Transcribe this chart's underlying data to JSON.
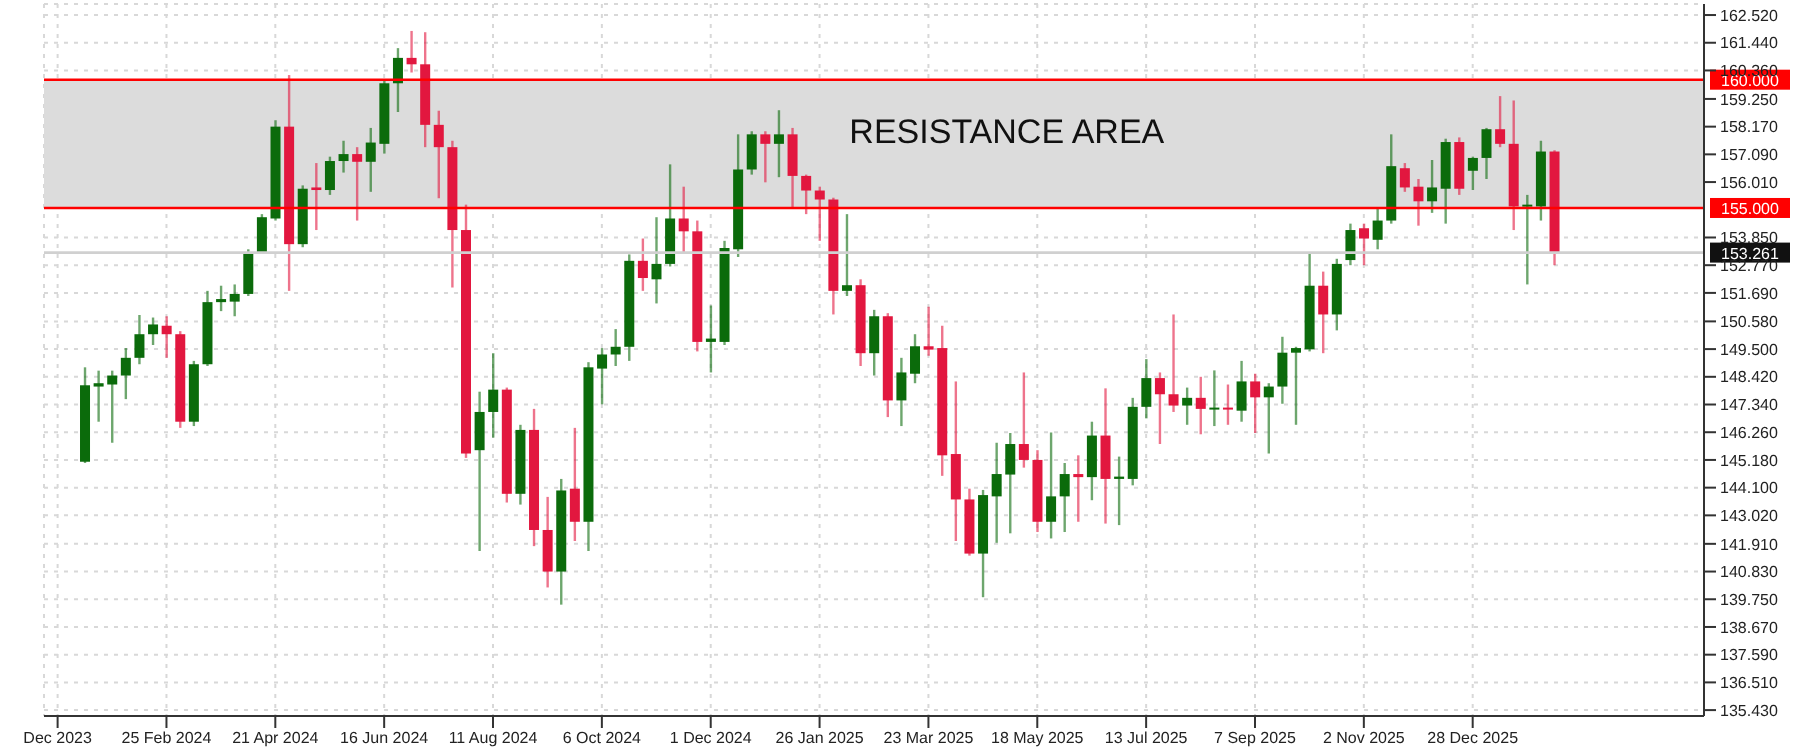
{
  "chart_data": {
    "type": "candlestick",
    "x": [
      "2024-01-14",
      "2024-01-21",
      "2024-01-28",
      "2024-02-04",
      "2024-02-11",
      "2024-02-18",
      "2024-02-25",
      "2024-03-03",
      "2024-03-10",
      "2024-03-17",
      "2024-03-24",
      "2024-03-31",
      "2024-04-07",
      "2024-04-14",
      "2024-04-21",
      "2024-04-28",
      "2024-05-05",
      "2024-05-12",
      "2024-05-19",
      "2024-05-26",
      "2024-06-02",
      "2024-06-09",
      "2024-06-16",
      "2024-06-23",
      "2024-06-30",
      "2024-07-07",
      "2024-07-14",
      "2024-07-21",
      "2024-07-28",
      "2024-08-04",
      "2024-08-11",
      "2024-08-18",
      "2024-08-25",
      "2024-09-01",
      "2024-09-08",
      "2024-09-15",
      "2024-09-22",
      "2024-09-29",
      "2024-10-06",
      "2024-10-13",
      "2024-10-20",
      "2024-10-27",
      "2024-11-03",
      "2024-11-10",
      "2024-11-17",
      "2024-11-24",
      "2024-12-01",
      "2024-12-08",
      "2024-12-15",
      "2024-12-22",
      "2024-12-29",
      "2025-01-05",
      "2025-01-12",
      "2025-01-19",
      "2025-01-26",
      "2025-02-02",
      "2025-02-09",
      "2025-02-16",
      "2025-02-23",
      "2025-03-02",
      "2025-03-09",
      "2025-03-16",
      "2025-03-23",
      "2025-03-30",
      "2025-04-06",
      "2025-04-13",
      "2025-04-20",
      "2025-04-27",
      "2025-05-04",
      "2025-05-11",
      "2025-05-18",
      "2025-05-25",
      "2025-06-01",
      "2025-06-08",
      "2025-06-15",
      "2025-06-22",
      "2025-06-29",
      "2025-07-06",
      "2025-07-13",
      "2025-07-20",
      "2025-07-27",
      "2025-08-03",
      "2025-08-10",
      "2025-08-17",
      "2025-08-24",
      "2025-08-31",
      "2025-09-07",
      "2025-09-14",
      "2025-09-21",
      "2025-09-28",
      "2025-10-05",
      "2025-10-12",
      "2025-10-19",
      "2025-10-26",
      "2025-11-02",
      "2025-11-09",
      "2025-11-16",
      "2025-11-23",
      "2025-11-30",
      "2025-12-07",
      "2025-12-14",
      "2025-12-21",
      "2025-12-28",
      "2026-01-04",
      "2026-01-11",
      "2026-01-18",
      "2026-01-25",
      "2026-02-01",
      "2026-02-08"
    ],
    "ohlc": [
      [
        145.11,
        148.79,
        145.06,
        148.09
      ],
      [
        148.04,
        148.66,
        146.67,
        148.17
      ],
      [
        148.12,
        148.66,
        145.85,
        148.47
      ],
      [
        148.47,
        149.54,
        147.55,
        149.16
      ],
      [
        149.16,
        150.83,
        148.91,
        150.08
      ],
      [
        150.08,
        150.73,
        149.66,
        150.46
      ],
      [
        150.41,
        150.78,
        149.16,
        150.08
      ],
      [
        150.08,
        150.2,
        146.43,
        146.67
      ],
      [
        146.67,
        149.04,
        146.5,
        148.91
      ],
      [
        148.91,
        151.77,
        148.84,
        151.33
      ],
      [
        151.33,
        151.97,
        150.98,
        151.45
      ],
      [
        151.35,
        152.02,
        150.78,
        151.65
      ],
      [
        151.65,
        153.39,
        151.57,
        153.27
      ],
      [
        153.27,
        154.76,
        153.22,
        154.64
      ],
      [
        154.59,
        158.42,
        154.51,
        158.17
      ],
      [
        158.17,
        160.18,
        151.77,
        153.59
      ],
      [
        153.59,
        155.88,
        153.47,
        155.75
      ],
      [
        155.8,
        156.75,
        154.14,
        155.7
      ],
      [
        155.7,
        157.0,
        155.51,
        156.83
      ],
      [
        156.83,
        157.62,
        156.38,
        157.1
      ],
      [
        157.1,
        157.37,
        154.51,
        156.8
      ],
      [
        156.8,
        158.12,
        155.63,
        157.55
      ],
      [
        157.5,
        159.98,
        157.12,
        159.86
      ],
      [
        159.86,
        161.23,
        158.74,
        160.85
      ],
      [
        160.85,
        161.9,
        160.28,
        160.6
      ],
      [
        160.6,
        161.85,
        157.37,
        158.24
      ],
      [
        158.24,
        158.79,
        155.38,
        157.37
      ],
      [
        157.37,
        157.62,
        151.9,
        154.14
      ],
      [
        154.14,
        155.13,
        145.26,
        145.43
      ],
      [
        145.56,
        147.84,
        141.63,
        147.05
      ],
      [
        147.05,
        149.34,
        146.05,
        147.92
      ],
      [
        147.92,
        148.0,
        143.52,
        143.86
      ],
      [
        143.86,
        146.55,
        143.44,
        146.35
      ],
      [
        146.35,
        147.17,
        141.82,
        142.45
      ],
      [
        142.45,
        143.74,
        140.21,
        140.83
      ],
      [
        140.83,
        144.44,
        139.54,
        143.99
      ],
      [
        144.06,
        146.43,
        142.02,
        142.77
      ],
      [
        142.77,
        148.99,
        141.63,
        148.79
      ],
      [
        148.74,
        149.54,
        147.35,
        149.29
      ],
      [
        149.29,
        150.28,
        148.84,
        149.59
      ],
      [
        149.59,
        153.19,
        149.04,
        152.94
      ],
      [
        152.94,
        153.81,
        151.77,
        152.27
      ],
      [
        152.22,
        154.64,
        151.28,
        152.82
      ],
      [
        152.82,
        156.7,
        152.72,
        154.59
      ],
      [
        154.59,
        155.83,
        153.22,
        154.09
      ],
      [
        154.09,
        154.51,
        149.41,
        149.78
      ],
      [
        149.78,
        151.2,
        148.59,
        149.91
      ],
      [
        149.78,
        153.72,
        149.66,
        153.44
      ],
      [
        153.39,
        157.87,
        153.09,
        156.5
      ],
      [
        156.5,
        157.99,
        156.3,
        157.87
      ],
      [
        157.87,
        157.99,
        156.0,
        157.5
      ],
      [
        157.5,
        158.81,
        156.2,
        157.87
      ],
      [
        157.87,
        158.12,
        154.96,
        156.25
      ],
      [
        156.25,
        156.3,
        154.76,
        155.68
      ],
      [
        155.68,
        155.83,
        153.72,
        155.33
      ],
      [
        155.33,
        155.4,
        150.85,
        151.77
      ],
      [
        151.77,
        154.76,
        151.57,
        151.99
      ],
      [
        151.99,
        152.22,
        148.84,
        149.34
      ],
      [
        149.34,
        151.03,
        148.47,
        150.78
      ],
      [
        150.78,
        150.9,
        146.85,
        147.5
      ],
      [
        147.5,
        149.16,
        146.5,
        148.59
      ],
      [
        148.54,
        150.08,
        148.17,
        149.61
      ],
      [
        149.61,
        151.15,
        149.24,
        149.48
      ],
      [
        149.54,
        150.41,
        144.56,
        145.36
      ],
      [
        145.41,
        148.24,
        142.02,
        143.64
      ],
      [
        143.64,
        144.06,
        141.45,
        141.53
      ],
      [
        141.53,
        144.01,
        139.83,
        143.81
      ],
      [
        143.76,
        145.85,
        141.95,
        144.63
      ],
      [
        144.61,
        146.23,
        142.32,
        145.8
      ],
      [
        145.8,
        148.59,
        144.88,
        145.18
      ],
      [
        145.18,
        145.56,
        142.37,
        142.77
      ],
      [
        142.77,
        146.25,
        142.12,
        143.76
      ],
      [
        143.76,
        145.06,
        142.37,
        144.63
      ],
      [
        144.63,
        145.36,
        142.77,
        144.51
      ],
      [
        144.51,
        146.67,
        143.61,
        146.13
      ],
      [
        146.13,
        147.97,
        142.7,
        144.44
      ],
      [
        144.44,
        145.31,
        142.64,
        144.53
      ],
      [
        144.44,
        147.6,
        144.19,
        147.25
      ],
      [
        147.25,
        149.11,
        146.8,
        148.37
      ],
      [
        148.37,
        148.59,
        145.8,
        147.74
      ],
      [
        147.74,
        150.85,
        147.05,
        147.3
      ],
      [
        147.3,
        148.0,
        146.55,
        147.6
      ],
      [
        147.6,
        148.42,
        146.18,
        147.17
      ],
      [
        147.17,
        148.67,
        146.5,
        147.22
      ],
      [
        147.22,
        148.12,
        146.55,
        147.15
      ],
      [
        147.1,
        149.04,
        146.67,
        148.24
      ],
      [
        148.24,
        148.54,
        146.23,
        147.62
      ],
      [
        147.62,
        148.17,
        145.43,
        148.04
      ],
      [
        148.04,
        149.98,
        147.37,
        149.36
      ],
      [
        149.36,
        149.59,
        146.55,
        149.54
      ],
      [
        149.49,
        153.22,
        149.41,
        151.97
      ],
      [
        151.97,
        152.52,
        149.34,
        150.85
      ],
      [
        150.85,
        153.02,
        150.23,
        152.82
      ],
      [
        152.97,
        154.39,
        152.77,
        154.14
      ],
      [
        154.21,
        154.39,
        152.77,
        153.81
      ],
      [
        153.76,
        154.96,
        153.39,
        154.51
      ],
      [
        154.51,
        157.87,
        154.39,
        156.63
      ],
      [
        156.55,
        156.75,
        155.63,
        155.8
      ],
      [
        155.83,
        156.13,
        154.31,
        155.26
      ],
      [
        155.26,
        156.87,
        154.81,
        155.8
      ],
      [
        155.75,
        157.7,
        154.39,
        157.57
      ],
      [
        157.57,
        157.75,
        155.51,
        155.75
      ],
      [
        156.45,
        157.0,
        155.7,
        156.95
      ],
      [
        156.95,
        158.12,
        156.13,
        158.07
      ],
      [
        158.07,
        159.36,
        157.37,
        157.5
      ],
      [
        157.5,
        159.19,
        154.14,
        155.06
      ],
      [
        155.06,
        155.51,
        152.02,
        155.13
      ],
      [
        155.06,
        157.62,
        154.51,
        157.2
      ],
      [
        157.2,
        157.25,
        152.77,
        153.26
      ]
    ],
    "colors": [
      "#0b6b0b",
      "#0b6b0b",
      "#0b6b0b",
      "#0b6b0b",
      "#0b6b0b",
      "#0b6b0b",
      "#e2173f",
      "#e2173f",
      "#0b6b0b",
      "#0b6b0b",
      "#0b6b0b",
      "#0b6b0b",
      "#0b6b0b",
      "#0b6b0b",
      "#0b6b0b",
      "#e2173f",
      "#0b6b0b",
      "#e2173f",
      "#0b6b0b",
      "#0b6b0b",
      "#e2173f",
      "#0b6b0b",
      "#0b6b0b",
      "#0b6b0b",
      "#e2173f",
      "#e2173f",
      "#e2173f",
      "#e2173f",
      "#e2173f",
      "#0b6b0b",
      "#0b6b0b",
      "#e2173f",
      "#0b6b0b",
      "#e2173f",
      "#e2173f",
      "#0b6b0b",
      "#e2173f",
      "#0b6b0b",
      "#0b6b0b",
      "#0b6b0b",
      "#0b6b0b",
      "#e2173f",
      "#0b6b0b",
      "#0b6b0b",
      "#e2173f",
      "#e2173f",
      "#0b6b0b",
      "#0b6b0b",
      "#0b6b0b",
      "#0b6b0b",
      "#e2173f",
      "#0b6b0b",
      "#e2173f",
      "#e2173f",
      "#e2173f",
      "#e2173f",
      "#0b6b0b",
      "#e2173f",
      "#0b6b0b",
      "#e2173f",
      "#0b6b0b",
      "#0b6b0b",
      "#e2173f",
      "#e2173f",
      "#e2173f",
      "#e2173f",
      "#0b6b0b",
      "#0b6b0b",
      "#0b6b0b",
      "#e2173f",
      "#e2173f",
      "#0b6b0b",
      "#0b6b0b",
      "#e2173f",
      "#0b6b0b",
      "#e2173f",
      "#0b6b0b",
      "#0b6b0b",
      "#0b6b0b",
      "#e2173f",
      "#e2173f",
      "#0b6b0b",
      "#e2173f",
      "#0b6b0b",
      "#e2173f",
      "#0b6b0b",
      "#e2173f",
      "#0b6b0b",
      "#0b6b0b",
      "#0b6b0b",
      "#0b6b0b",
      "#e2173f",
      "#0b6b0b",
      "#0b6b0b",
      "#e2173f",
      "#0b6b0b",
      "#0b6b0b",
      "#e2173f",
      "#e2173f",
      "#0b6b0b",
      "#0b6b0b",
      "#e2173f",
      "#0b6b0b",
      "#0b6b0b",
      "#e2173f",
      "#e2173f",
      "#0b6b0b",
      "#0b6b0b",
      "#e2173f"
    ],
    "xlim": [
      "2023-12-24",
      "2026-04-26"
    ],
    "xticks": [
      {
        "value": "2023-12-31",
        "label": "Dec 2023"
      },
      {
        "value": "2024-02-25",
        "label": "25 Feb 2024"
      },
      {
        "value": "2024-04-21",
        "label": "21 Apr 2024"
      },
      {
        "value": "2024-06-16",
        "label": "16 Jun 2024"
      },
      {
        "value": "2024-08-11",
        "label": "11 Aug 2024"
      },
      {
        "value": "2024-10-06",
        "label": "6 Oct 2024"
      },
      {
        "value": "2024-12-01",
        "label": "1 Dec 2024"
      },
      {
        "value": "2025-01-26",
        "label": "26 Jan 2025"
      },
      {
        "value": "2025-03-23",
        "label": "23 Mar 2025"
      },
      {
        "value": "2025-05-18",
        "label": "18 May 2025"
      },
      {
        "value": "2025-07-13",
        "label": "13 Jul 2025"
      },
      {
        "value": "2025-09-07",
        "label": "7 Sep 2025"
      },
      {
        "value": "2025-11-02",
        "label": "2 Nov 2025"
      },
      {
        "value": "2025-12-28",
        "label": "28 Dec 2025"
      }
    ],
    "ylim": [
      135.2,
      162.95
    ],
    "yticks": [
      {
        "value": 135.43,
        "label": "135.430"
      },
      {
        "value": 136.51,
        "label": "136.510"
      },
      {
        "value": 137.59,
        "label": "137.590"
      },
      {
        "value": 138.67,
        "label": "138.670"
      },
      {
        "value": 139.75,
        "label": "139.750"
      },
      {
        "value": 140.83,
        "label": "140.830"
      },
      {
        "value": 141.91,
        "label": "141.910"
      },
      {
        "value": 143.02,
        "label": "143.020"
      },
      {
        "value": 144.1,
        "label": "144.100"
      },
      {
        "value": 145.18,
        "label": "145.180"
      },
      {
        "value": 146.26,
        "label": "146.260"
      },
      {
        "value": 147.34,
        "label": "147.340"
      },
      {
        "value": 148.42,
        "label": "148.420"
      },
      {
        "value": 149.5,
        "label": "149.500"
      },
      {
        "value": 150.58,
        "label": "150.580"
      },
      {
        "value": 151.69,
        "label": "151.690"
      },
      {
        "value": 152.77,
        "label": "152.770"
      },
      {
        "value": 153.85,
        "label": "153.850"
      },
      {
        "value": 156.01,
        "label": "156.010"
      },
      {
        "value": 157.09,
        "label": "157.090"
      },
      {
        "value": 158.17,
        "label": "158.170"
      },
      {
        "value": 159.25,
        "label": "159.250"
      },
      {
        "value": 160.36,
        "label": "160.360"
      },
      {
        "value": 161.44,
        "label": "161.440"
      },
      {
        "value": 162.52,
        "label": "162.520"
      }
    ],
    "grid": true,
    "ref_lines": [
      {
        "axis": "y",
        "value": 160,
        "label": "160.000",
        "color": "#ff0000"
      },
      {
        "axis": "y",
        "value": 155,
        "label": "155.000",
        "color": "#ff0000"
      },
      {
        "axis": "y",
        "value": 153.261,
        "label": "153.261",
        "color": "#d0d0d0"
      }
    ],
    "bands": [
      {
        "axis": "y",
        "from": 155,
        "to": 160,
        "label": "RESISTANCE AREA",
        "color": "#dcdcdc"
      }
    ]
  }
}
